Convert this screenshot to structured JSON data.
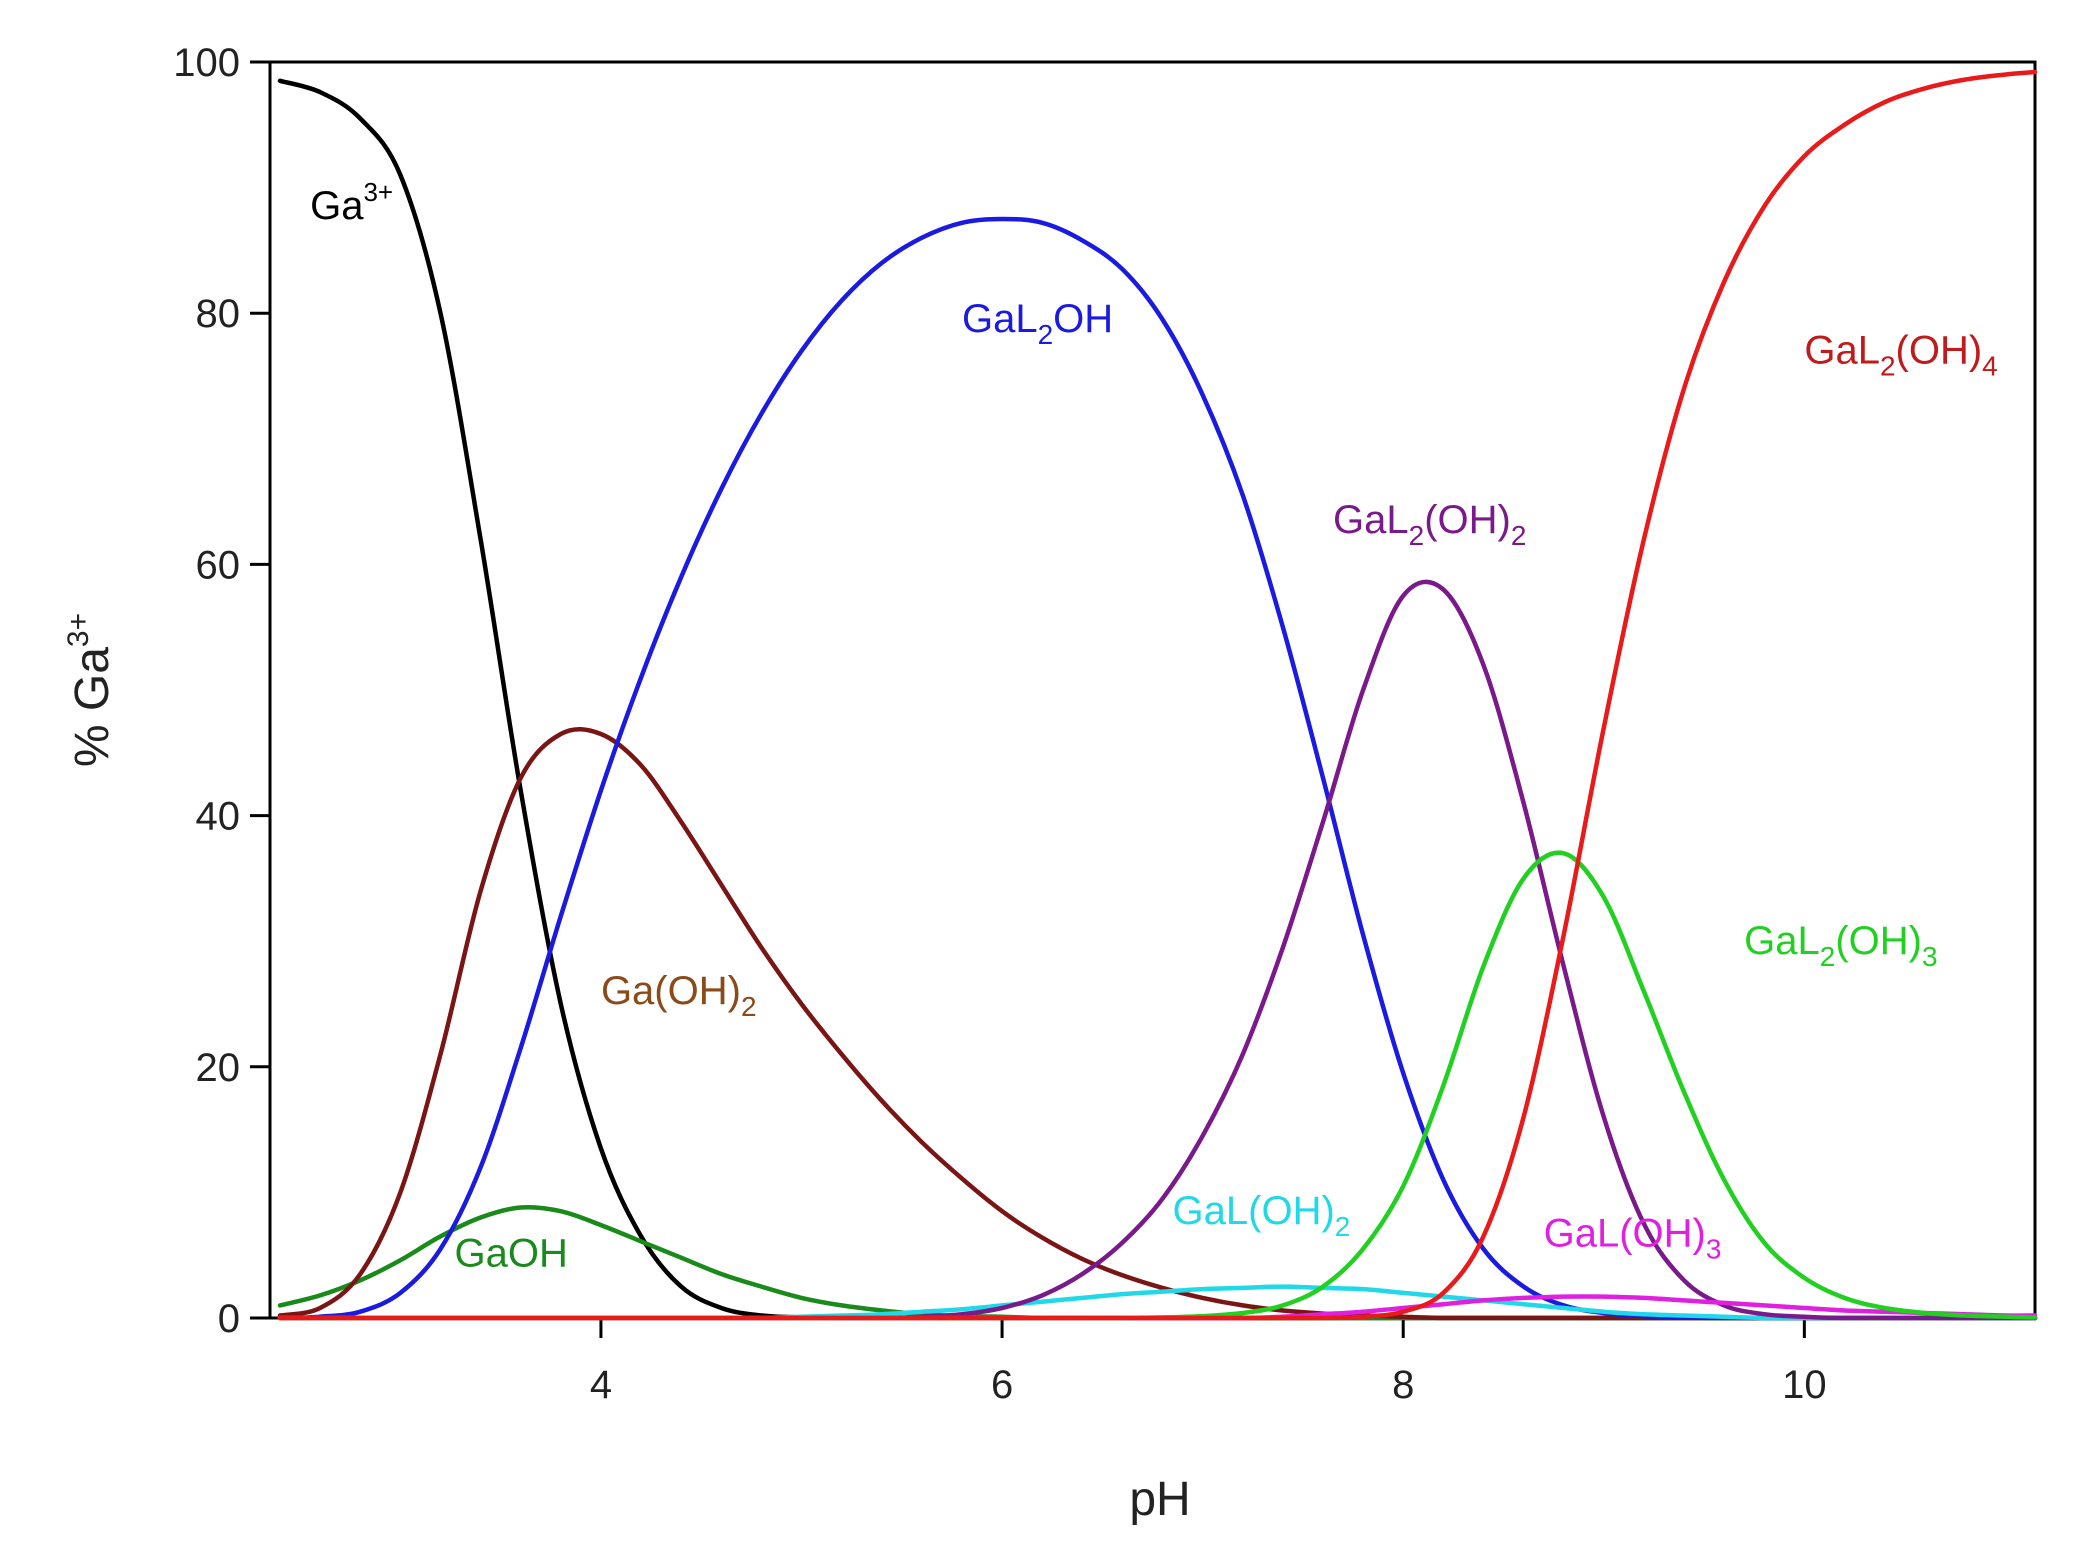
{
  "chart_data": {
    "type": "line",
    "title": "",
    "xlabel": "pH",
    "ylabel": "% Ga",
    "ylabel_sup": "3+",
    "xlim": [
      2.35,
      11.15
    ],
    "ylim": [
      0,
      100
    ],
    "xticks": [
      4,
      6,
      8,
      10
    ],
    "xtick_labels": [
      "4",
      "6",
      "8",
      "10"
    ],
    "yticks": [
      0,
      20,
      40,
      60,
      80,
      100
    ],
    "ytick_labels": [
      "0",
      "20",
      "40",
      "60",
      "80",
      "100"
    ],
    "grid": false,
    "x": [
      2.4,
      2.6,
      2.8,
      3.0,
      3.2,
      3.4,
      3.6,
      3.8,
      4.0,
      4.2,
      4.4,
      4.6,
      4.8,
      5.0,
      5.2,
      5.4,
      5.6,
      5.8,
      6.0,
      6.2,
      6.4,
      6.6,
      6.8,
      7.0,
      7.2,
      7.4,
      7.6,
      7.8,
      8.0,
      8.2,
      8.4,
      8.6,
      8.8,
      9.0,
      9.2,
      9.4,
      9.6,
      9.8,
      10.0,
      10.2,
      10.4,
      10.6,
      10.8,
      11.0,
      11.15
    ],
    "series": [
      {
        "name": "Ga3+",
        "color": "#000000",
        "values": [
          98.5,
          97.6,
          95.5,
          91.0,
          80.0,
          62.0,
          42.0,
          25.0,
          13.5,
          6.5,
          2.5,
          0.8,
          0.2,
          0.05,
          0,
          0,
          0,
          0,
          0,
          0,
          0,
          0,
          0,
          0,
          0,
          0,
          0,
          0,
          0,
          0,
          0,
          0,
          0,
          0,
          0,
          0,
          0,
          0,
          0,
          0,
          0,
          0,
          0,
          0,
          0
        ]
      },
      {
        "name": "GaOH",
        "color": "#1a8a1a",
        "values": [
          1.0,
          1.8,
          3.0,
          4.6,
          6.5,
          8.0,
          8.8,
          8.5,
          7.4,
          6.1,
          4.8,
          3.5,
          2.5,
          1.6,
          1.0,
          0.6,
          0.3,
          0.15,
          0.1,
          0,
          0,
          0,
          0,
          0,
          0,
          0,
          0,
          0,
          0,
          0,
          0,
          0,
          0,
          0,
          0,
          0,
          0,
          0,
          0,
          0,
          0,
          0,
          0,
          0,
          0
        ]
      },
      {
        "name": "Ga(OH)2",
        "color": "#7a1515",
        "values": [
          0.2,
          0.8,
          3.5,
          10.0,
          21.0,
          34.0,
          43.0,
          46.5,
          46.5,
          44.0,
          39.5,
          34.5,
          29.5,
          25.0,
          21.0,
          17.3,
          14.0,
          11.1,
          8.5,
          6.4,
          4.7,
          3.4,
          2.4,
          1.6,
          1.0,
          0.6,
          0.35,
          0.2,
          0.1,
          0,
          0,
          0,
          0,
          0,
          0,
          0,
          0,
          0,
          0,
          0,
          0,
          0,
          0,
          0,
          0
        ]
      },
      {
        "name": "GaL2OH",
        "color": "#1a1ae0",
        "values": [
          0,
          0.1,
          0.5,
          2.0,
          5.5,
          12.0,
          21.5,
          32.0,
          42.0,
          51.0,
          59.0,
          66.0,
          72.0,
          77.0,
          81.0,
          84.0,
          86.0,
          87.2,
          87.5,
          87.2,
          85.8,
          83.5,
          79.5,
          73.5,
          65.5,
          55.0,
          43.0,
          30.5,
          19.5,
          11.0,
          5.5,
          2.5,
          1.0,
          0.4,
          0.15,
          0.05,
          0,
          0,
          0,
          0,
          0,
          0,
          0,
          0,
          0
        ]
      },
      {
        "name": "GaL(OH)2",
        "color": "#20d8e8",
        "values": [
          0,
          0,
          0,
          0,
          0,
          0,
          0,
          0,
          0,
          0,
          0,
          0,
          0,
          0.1,
          0.2,
          0.3,
          0.5,
          0.7,
          1.0,
          1.3,
          1.6,
          1.9,
          2.1,
          2.3,
          2.4,
          2.5,
          2.4,
          2.3,
          2.0,
          1.7,
          1.4,
          1.1,
          0.8,
          0.5,
          0.3,
          0.2,
          0.1,
          0,
          0,
          0,
          0,
          0,
          0,
          0,
          0
        ]
      },
      {
        "name": "GaL2(OH)2",
        "color": "#7a1a8a",
        "values": [
          0,
          0,
          0,
          0,
          0,
          0,
          0,
          0,
          0,
          0,
          0,
          0,
          0,
          0,
          0,
          0,
          0.1,
          0.3,
          0.8,
          1.8,
          3.5,
          6.0,
          9.5,
          14.5,
          21.0,
          29.5,
          39.5,
          50.0,
          57.5,
          58.0,
          52.0,
          41.0,
          28.0,
          16.0,
          7.5,
          3.0,
          1.0,
          0.3,
          0.1,
          0,
          0,
          0,
          0,
          0,
          0
        ]
      },
      {
        "name": "GaL(OH)3",
        "color": "#e020e0",
        "values": [
          0,
          0,
          0,
          0,
          0,
          0,
          0,
          0,
          0,
          0,
          0,
          0,
          0,
          0,
          0,
          0,
          0,
          0,
          0,
          0,
          0,
          0,
          0,
          0,
          0,
          0.1,
          0.3,
          0.5,
          0.8,
          1.1,
          1.4,
          1.6,
          1.7,
          1.7,
          1.6,
          1.4,
          1.2,
          1.0,
          0.8,
          0.6,
          0.5,
          0.4,
          0.3,
          0.2,
          0.2
        ]
      },
      {
        "name": "GaL2(OH)3",
        "color": "#22d022",
        "values": [
          0,
          0,
          0,
          0,
          0,
          0,
          0,
          0,
          0,
          0,
          0,
          0,
          0,
          0,
          0,
          0,
          0,
          0,
          0,
          0,
          0,
          0,
          0.05,
          0.15,
          0.4,
          1.0,
          2.5,
          5.5,
          10.5,
          18.5,
          28.0,
          35.0,
          37.0,
          33.5,
          26.0,
          18.0,
          11.0,
          6.0,
          3.2,
          1.6,
          0.8,
          0.4,
          0.2,
          0.1,
          0.05
        ]
      },
      {
        "name": "GaL2(OH)4",
        "color": "#e81a1a",
        "values": [
          0,
          0,
          0,
          0,
          0,
          0,
          0,
          0,
          0,
          0,
          0,
          0,
          0,
          0,
          0,
          0,
          0,
          0,
          0,
          0,
          0,
          0,
          0,
          0,
          0,
          0,
          0,
          0.1,
          0.5,
          2.0,
          6.5,
          16.0,
          30.5,
          47.0,
          62.0,
          74.0,
          82.5,
          88.5,
          92.5,
          95.0,
          96.8,
          97.9,
          98.6,
          99.0,
          99.2
        ]
      }
    ],
    "labels": [
      {
        "series": "Ga3+",
        "base": "Ga",
        "sup": "3+",
        "sub": "",
        "tail": "",
        "x": 2.55,
        "y": 87.5,
        "color": "#000000"
      },
      {
        "series": "GaL2OH",
        "base": "GaL",
        "sub": "2",
        "tail": "OH",
        "sub2": "",
        "x": 5.8,
        "y": 78.5,
        "color": "#1a1ae0"
      },
      {
        "series": "GaL2(OH)4",
        "base": "GaL",
        "sub": "2",
        "tail": "(OH)",
        "sub2": "4",
        "x": 10.0,
        "y": 76.0,
        "color": "#c01a1a"
      },
      {
        "series": "GaL2(OH)2",
        "base": "GaL",
        "sub": "2",
        "tail": "(OH)",
        "sub2": "2",
        "x": 7.65,
        "y": 62.5,
        "color": "#7a1a8a"
      },
      {
        "series": "GaL2(OH)3",
        "base": "GaL",
        "sub": "2",
        "tail": "(OH)",
        "sub2": "3",
        "x": 9.7,
        "y": 29.0,
        "color": "#22d022"
      },
      {
        "series": "Ga(OH)2",
        "base": "Ga(OH)",
        "sub": "2",
        "tail": "",
        "sub2": "",
        "x": 4.0,
        "y": 25.0,
        "color": "#8a4a1a"
      },
      {
        "series": "GaL(OH)2",
        "base": "GaL(OH)",
        "sub": "2",
        "tail": "",
        "sub2": "",
        "x": 6.85,
        "y": 7.5,
        "color": "#20d8e8"
      },
      {
        "series": "GaL(OH)3",
        "base": "GaL(OH)",
        "sub": "3",
        "tail": "",
        "sub2": "",
        "x": 8.7,
        "y": 5.7,
        "color": "#e020e0"
      },
      {
        "series": "GaOH",
        "base": "GaOH",
        "sub": "",
        "tail": "",
        "sub2": "",
        "x": 3.27,
        "y": 4.1,
        "color": "#1a8a1a"
      }
    ]
  }
}
